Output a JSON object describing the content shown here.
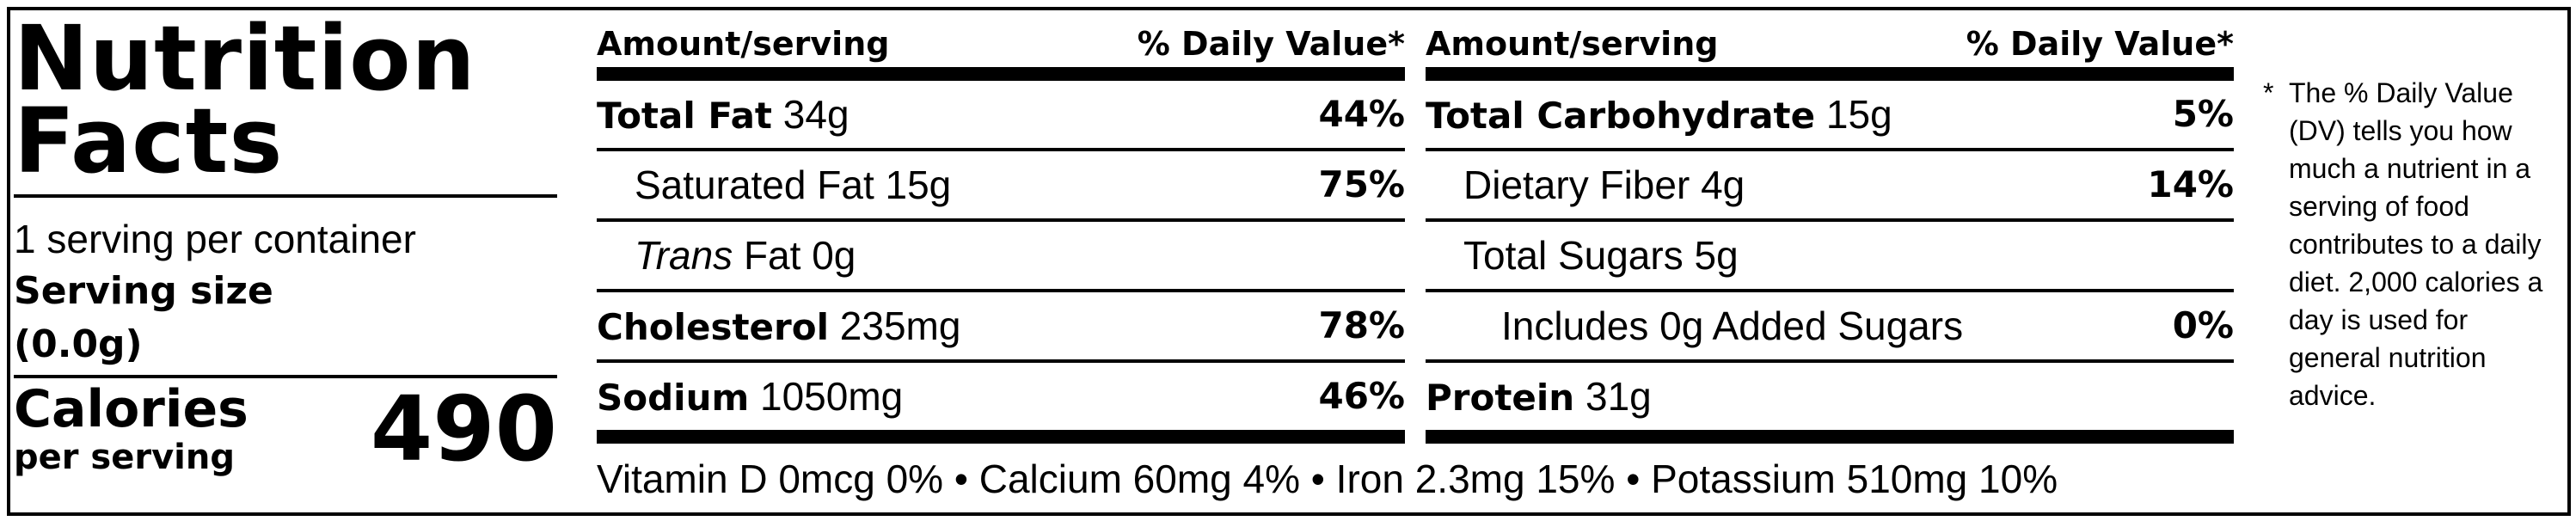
{
  "title_line1": "Nutrition",
  "title_line2": "Facts",
  "servings_per_container": "1 serving per container",
  "serving_size_label": "Serving size",
  "serving_size_value": "(0.0g)",
  "calories_label": "Calories",
  "calories_sub": "per serving",
  "calories_value": "490",
  "header": {
    "amount": "Amount/serving",
    "dv": "% Daily Value*"
  },
  "col1": [
    {
      "name": "Total Fat",
      "amount": "34g",
      "dv": "44%"
    },
    {
      "name": "Saturated Fat",
      "amount": "15g",
      "dv": "75%"
    },
    {
      "name_italic": "Trans",
      "name": "Fat",
      "amount": "0g",
      "dv": ""
    },
    {
      "name": "Cholesterol",
      "amount": "235mg",
      "dv": "78%"
    },
    {
      "name": "Sodium",
      "amount": "1050mg",
      "dv": "46%"
    }
  ],
  "col2": [
    {
      "name": "Total Carbohydrate",
      "amount": "15g",
      "dv": "5%"
    },
    {
      "name": "Dietary Fiber",
      "amount": "4g",
      "dv": "14%"
    },
    {
      "name": "Total Sugars",
      "amount": "5g",
      "dv": ""
    },
    {
      "name": "Includes 0g Added Sugars",
      "amount": "",
      "dv": "0%"
    },
    {
      "name": "Protein",
      "amount": "31g",
      "dv": ""
    }
  ],
  "vitamins": "Vitamin D 0mcg 0% • Calcium 60mg 4% • Iron 2.3mg 15% • Potassium 510mg 10%",
  "footnote_star": "*",
  "footnote": "The % Daily Value (DV) tells you how much a nutrient in a serving of food contributes to a daily diet. 2,000 calories a day is used for general nutrition advice."
}
